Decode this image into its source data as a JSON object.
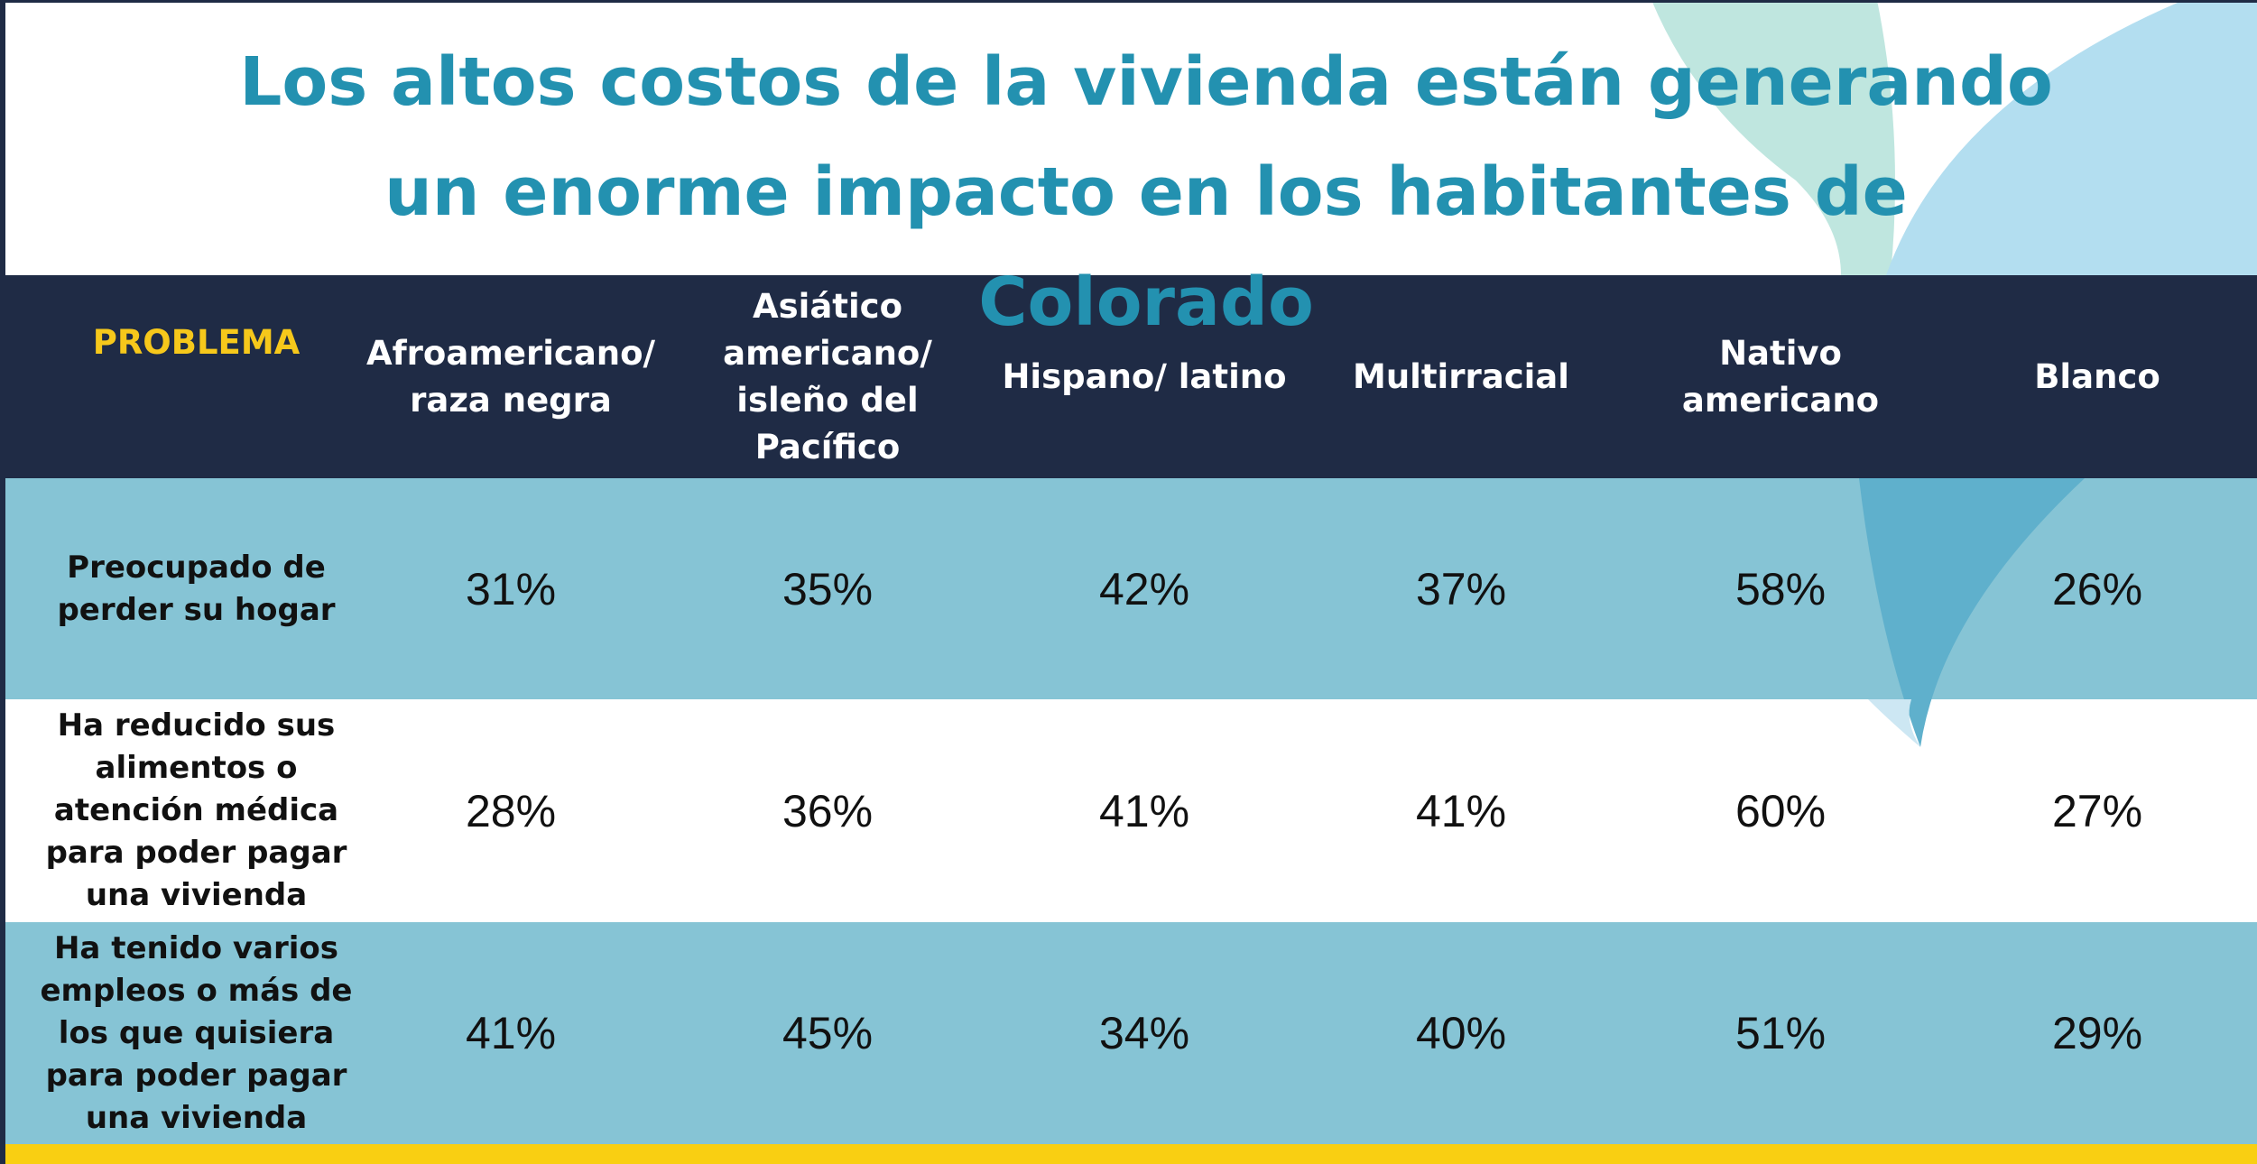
{
  "title": "Los altos costos de la vivienda están generando un enorme impacto en los habitantes de Colorado",
  "table": {
    "header": [
      "PROBLEMA",
      "Afroamericano/ raza negra",
      "Asiático americano/ isleño del Pacífico",
      "Hispano/ latino",
      "Multirracial",
      "Nativo americano",
      "Blanco"
    ],
    "rows": [
      [
        "Preocupado de perder su hogar",
        "31%",
        "35%",
        "42%",
        "37%",
        "58%",
        "26%"
      ],
      [
        "Ha reducido sus alimentos o atención médica para poder pagar una vivienda",
        "28%",
        "36%",
        "41%",
        "41%",
        "60%",
        "27%"
      ],
      [
        "Ha tenido varios empleos o más de los que quisiera para poder pagar una vivienda",
        "41%",
        "45%",
        "34%",
        "40%",
        "51%",
        "29%"
      ]
    ]
  }
}
